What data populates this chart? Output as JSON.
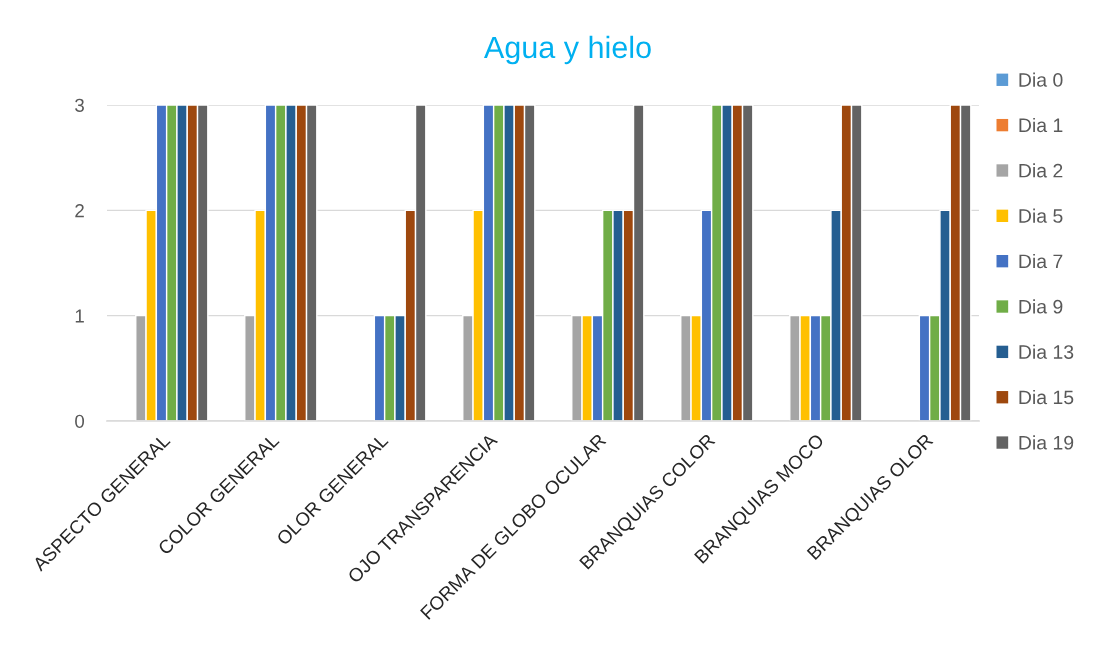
{
  "chart_data": {
    "type": "bar",
    "title": "Agua y hielo",
    "categories": [
      "ASPECTO GENERAL",
      "COLOR GENERAL",
      "OLOR GENERAL",
      "OJO TRANSPARENCIA",
      "FORMA DE GLOBO OCULAR",
      "BRANQUIAS COLOR",
      "BRANQUIAS MOCO",
      "BRANQUIAS OLOR"
    ],
    "series": [
      {
        "name": "Dia 0",
        "color": "#5b9bd5",
        "values": [
          0,
          0,
          0,
          0,
          0,
          0,
          0,
          0
        ]
      },
      {
        "name": "Dia 1",
        "color": "#ed7d31",
        "values": [
          0,
          0,
          0,
          0,
          0,
          0,
          0,
          0
        ]
      },
      {
        "name": "Dia 2",
        "color": "#a5a5a5",
        "values": [
          1,
          1,
          0,
          1,
          1,
          1,
          1,
          0
        ]
      },
      {
        "name": "Dia 5",
        "color": "#ffc000",
        "values": [
          2,
          2,
          0,
          2,
          1,
          1,
          1,
          0
        ]
      },
      {
        "name": "Dia 7",
        "color": "#4472c4",
        "values": [
          3,
          3,
          1,
          3,
          1,
          2,
          1,
          1
        ]
      },
      {
        "name": "Dia 9",
        "color": "#70ad47",
        "values": [
          3,
          3,
          1,
          3,
          2,
          3,
          1,
          1
        ]
      },
      {
        "name": "Dia 13",
        "color": "#255e91",
        "values": [
          3,
          3,
          1,
          3,
          2,
          3,
          2,
          2
        ]
      },
      {
        "name": "Dia 15",
        "color": "#9e480e",
        "values": [
          3,
          3,
          2,
          3,
          2,
          3,
          3,
          3
        ]
      },
      {
        "name": "Dia 19",
        "color": "#636363",
        "values": [
          3,
          3,
          3,
          3,
          3,
          3,
          3,
          3
        ]
      }
    ],
    "ylim": [
      0,
      3
    ],
    "yticks": [
      0,
      1,
      2,
      3
    ],
    "grid": "y",
    "legend": "right"
  }
}
